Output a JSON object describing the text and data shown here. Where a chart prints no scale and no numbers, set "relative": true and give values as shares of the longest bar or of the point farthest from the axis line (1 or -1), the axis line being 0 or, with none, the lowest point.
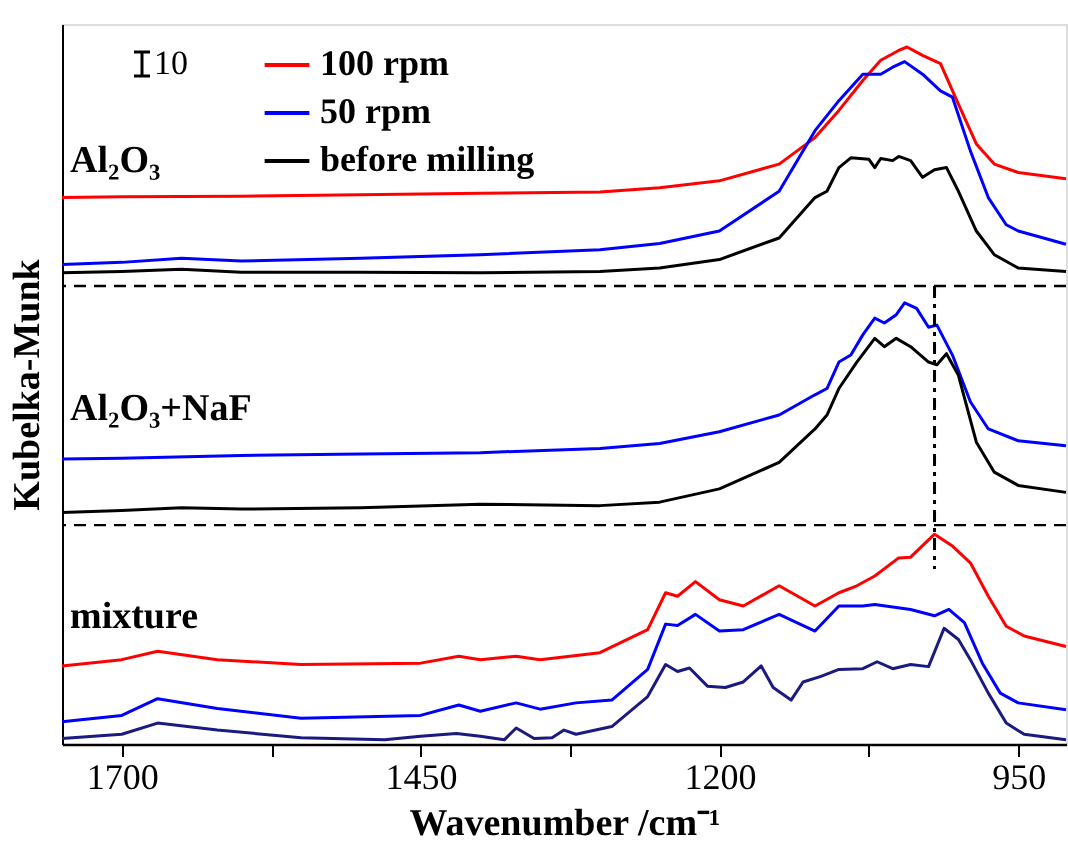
{
  "chart_data": {
    "type": "line",
    "relative": true,
    "xlabel": "Wavenumber /cm⁻¹",
    "ylabel": "Kubelka-Munk",
    "xlim": [
      1750,
      910
    ],
    "xticks": [
      1700,
      {
        "value": 1575,
        "label": null
      },
      1450,
      {
        "value": 1325,
        "label": null
      },
      1200,
      {
        "value": 1075,
        "label": null
      },
      950
    ],
    "grid": false,
    "legend": "top",
    "line_style": "solid",
    "marker": "none",
    "tick_labels": "x",
    "ref_lines": [
      {
        "axis": "y",
        "value": 0.657,
        "line_style": "dashed",
        "color": "#000000"
      },
      {
        "axis": "y",
        "value": 0.314,
        "line_style": "dashed",
        "color": "#000000"
      }
    ],
    "annotations": [
      "10",
      "Al₂O₃",
      "Al₂O₃+NaF",
      "mixture"
    ],
    "series": [
      {
        "name": "100 rpm",
        "color": "#ff0000",
        "x": [
          1750,
          1700,
          1600,
          1500,
          1400,
          1300,
          1250,
          1200,
          1150,
          1120,
          1100,
          1080,
          1065,
          1050,
          1043,
          1030,
          1015,
          1000,
          985,
          970,
          950,
          910
        ],
        "values": [
          0.784,
          0.785,
          0.786,
          0.788,
          0.79,
          0.792,
          0.798,
          0.808,
          0.832,
          0.87,
          0.909,
          0.952,
          0.981,
          0.995,
          1.0,
          0.988,
          0.976,
          0.918,
          0.861,
          0.832,
          0.82,
          0.811
        ]
      },
      {
        "name": "50 rpm",
        "color": "#0000ff",
        "x": [
          1750,
          1700,
          1650,
          1600,
          1500,
          1400,
          1300,
          1250,
          1200,
          1150,
          1120,
          1100,
          1080,
          1065,
          1055,
          1045,
          1030,
          1015,
          1005,
          990,
          975,
          960,
          950,
          910
        ],
        "values": [
          0.688,
          0.691,
          0.697,
          0.693,
          0.697,
          0.702,
          0.709,
          0.718,
          0.736,
          0.793,
          0.88,
          0.923,
          0.961,
          0.961,
          0.971,
          0.979,
          0.961,
          0.937,
          0.928,
          0.851,
          0.784,
          0.745,
          0.736,
          0.717
        ]
      },
      {
        "name": "before milling",
        "color": "#000000",
        "x": [
          1750,
          1700,
          1650,
          1600,
          1500,
          1400,
          1300,
          1250,
          1200,
          1150,
          1120,
          1110,
          1100,
          1090,
          1075,
          1070,
          1065,
          1055,
          1050,
          1040,
          1030,
          1020,
          1010,
          1000,
          985,
          970,
          950,
          910
        ],
        "values": [
          0.676,
          0.678,
          0.681,
          0.677,
          0.677,
          0.676,
          0.678,
          0.683,
          0.695,
          0.726,
          0.784,
          0.793,
          0.827,
          0.841,
          0.839,
          0.827,
          0.84,
          0.837,
          0.843,
          0.837,
          0.813,
          0.824,
          0.827,
          0.793,
          0.736,
          0.702,
          0.683,
          0.678
        ]
      },
      {
        "color": "#0000ff",
        "x": [
          1750,
          1700,
          1600,
          1500,
          1400,
          1300,
          1250,
          1200,
          1150,
          1120,
          1110,
          1100,
          1090,
          1080,
          1070,
          1062,
          1052,
          1045,
          1035,
          1025,
          1018,
          1005,
          990,
          975,
          950,
          910
        ],
        "values": [
          0.409,
          0.41,
          0.414,
          0.416,
          0.418,
          0.424,
          0.431,
          0.448,
          0.472,
          0.501,
          0.51,
          0.548,
          0.558,
          0.587,
          0.611,
          0.604,
          0.616,
          0.633,
          0.625,
          0.598,
          0.601,
          0.558,
          0.491,
          0.452,
          0.435,
          0.428
        ]
      },
      {
        "color": "#000000",
        "x": [
          1750,
          1700,
          1650,
          1600,
          1500,
          1400,
          1300,
          1250,
          1200,
          1150,
          1120,
          1110,
          1100,
          1085,
          1070,
          1062,
          1052,
          1040,
          1025,
          1018,
          1010,
          1000,
          985,
          970,
          950,
          910
        ],
        "values": [
          0.332,
          0.335,
          0.339,
          0.337,
          0.339,
          0.344,
          0.342,
          0.347,
          0.366,
          0.404,
          0.452,
          0.472,
          0.51,
          0.548,
          0.582,
          0.57,
          0.582,
          0.57,
          0.548,
          0.544,
          0.56,
          0.529,
          0.433,
          0.39,
          0.371,
          0.361
        ]
      },
      {
        "color": "#ff0000",
        "x": [
          1750,
          1700,
          1670,
          1620,
          1550,
          1450,
          1418,
          1400,
          1370,
          1350,
          1300,
          1260,
          1245,
          1235,
          1220,
          1200,
          1180,
          1150,
          1120,
          1100,
          1085,
          1070,
          1050,
          1040,
          1020,
          1005,
          990,
          975,
          960,
          945,
          910
        ],
        "values": [
          0.112,
          0.121,
          0.133,
          0.121,
          0.114,
          0.116,
          0.126,
          0.121,
          0.126,
          0.121,
          0.131,
          0.164,
          0.217,
          0.212,
          0.233,
          0.207,
          0.198,
          0.227,
          0.198,
          0.217,
          0.227,
          0.241,
          0.267,
          0.268,
          0.301,
          0.284,
          0.26,
          0.212,
          0.169,
          0.155,
          0.14
        ]
      },
      {
        "color": "#0000ff",
        "x": [
          1750,
          1700,
          1670,
          1620,
          1550,
          1450,
          1418,
          1400,
          1370,
          1350,
          1320,
          1290,
          1260,
          1245,
          1235,
          1220,
          1200,
          1180,
          1150,
          1120,
          1100,
          1080,
          1070,
          1040,
          1020,
          1008,
          995,
          980,
          965,
          950,
          910
        ],
        "values": [
          0.032,
          0.041,
          0.065,
          0.051,
          0.037,
          0.041,
          0.056,
          0.047,
          0.059,
          0.05,
          0.059,
          0.063,
          0.107,
          0.172,
          0.17,
          0.186,
          0.162,
          0.164,
          0.186,
          0.162,
          0.198,
          0.198,
          0.2,
          0.193,
          0.184,
          0.193,
          0.174,
          0.116,
          0.073,
          0.059,
          0.049
        ]
      },
      {
        "color": "#1a1a80",
        "x": [
          1750,
          1700,
          1670,
          1620,
          1550,
          1480,
          1450,
          1420,
          1400,
          1380,
          1370,
          1355,
          1340,
          1330,
          1320,
          1290,
          1260,
          1245,
          1235,
          1225,
          1210,
          1195,
          1180,
          1165,
          1155,
          1140,
          1130,
          1115,
          1100,
          1080,
          1068,
          1055,
          1040,
          1025,
          1012,
          1000,
          990,
          975,
          960,
          945,
          910
        ],
        "values": [
          0.008,
          0.014,
          0.03,
          0.02,
          0.009,
          0.006,
          0.011,
          0.015,
          0.011,
          0.006,
          0.023,
          0.008,
          0.009,
          0.02,
          0.014,
          0.025,
          0.068,
          0.114,
          0.104,
          0.109,
          0.083,
          0.081,
          0.089,
          0.112,
          0.081,
          0.063,
          0.089,
          0.097,
          0.107,
          0.108,
          0.118,
          0.108,
          0.114,
          0.111,
          0.166,
          0.15,
          0.121,
          0.073,
          0.03,
          0.014,
          0.006
        ]
      },
      {
        "type": "line",
        "line_style": "dashdot",
        "color": "#000000",
        "x": [
          1020,
          1020
        ],
        "values": [
          0.657,
          0.251
        ]
      }
    ]
  }
}
